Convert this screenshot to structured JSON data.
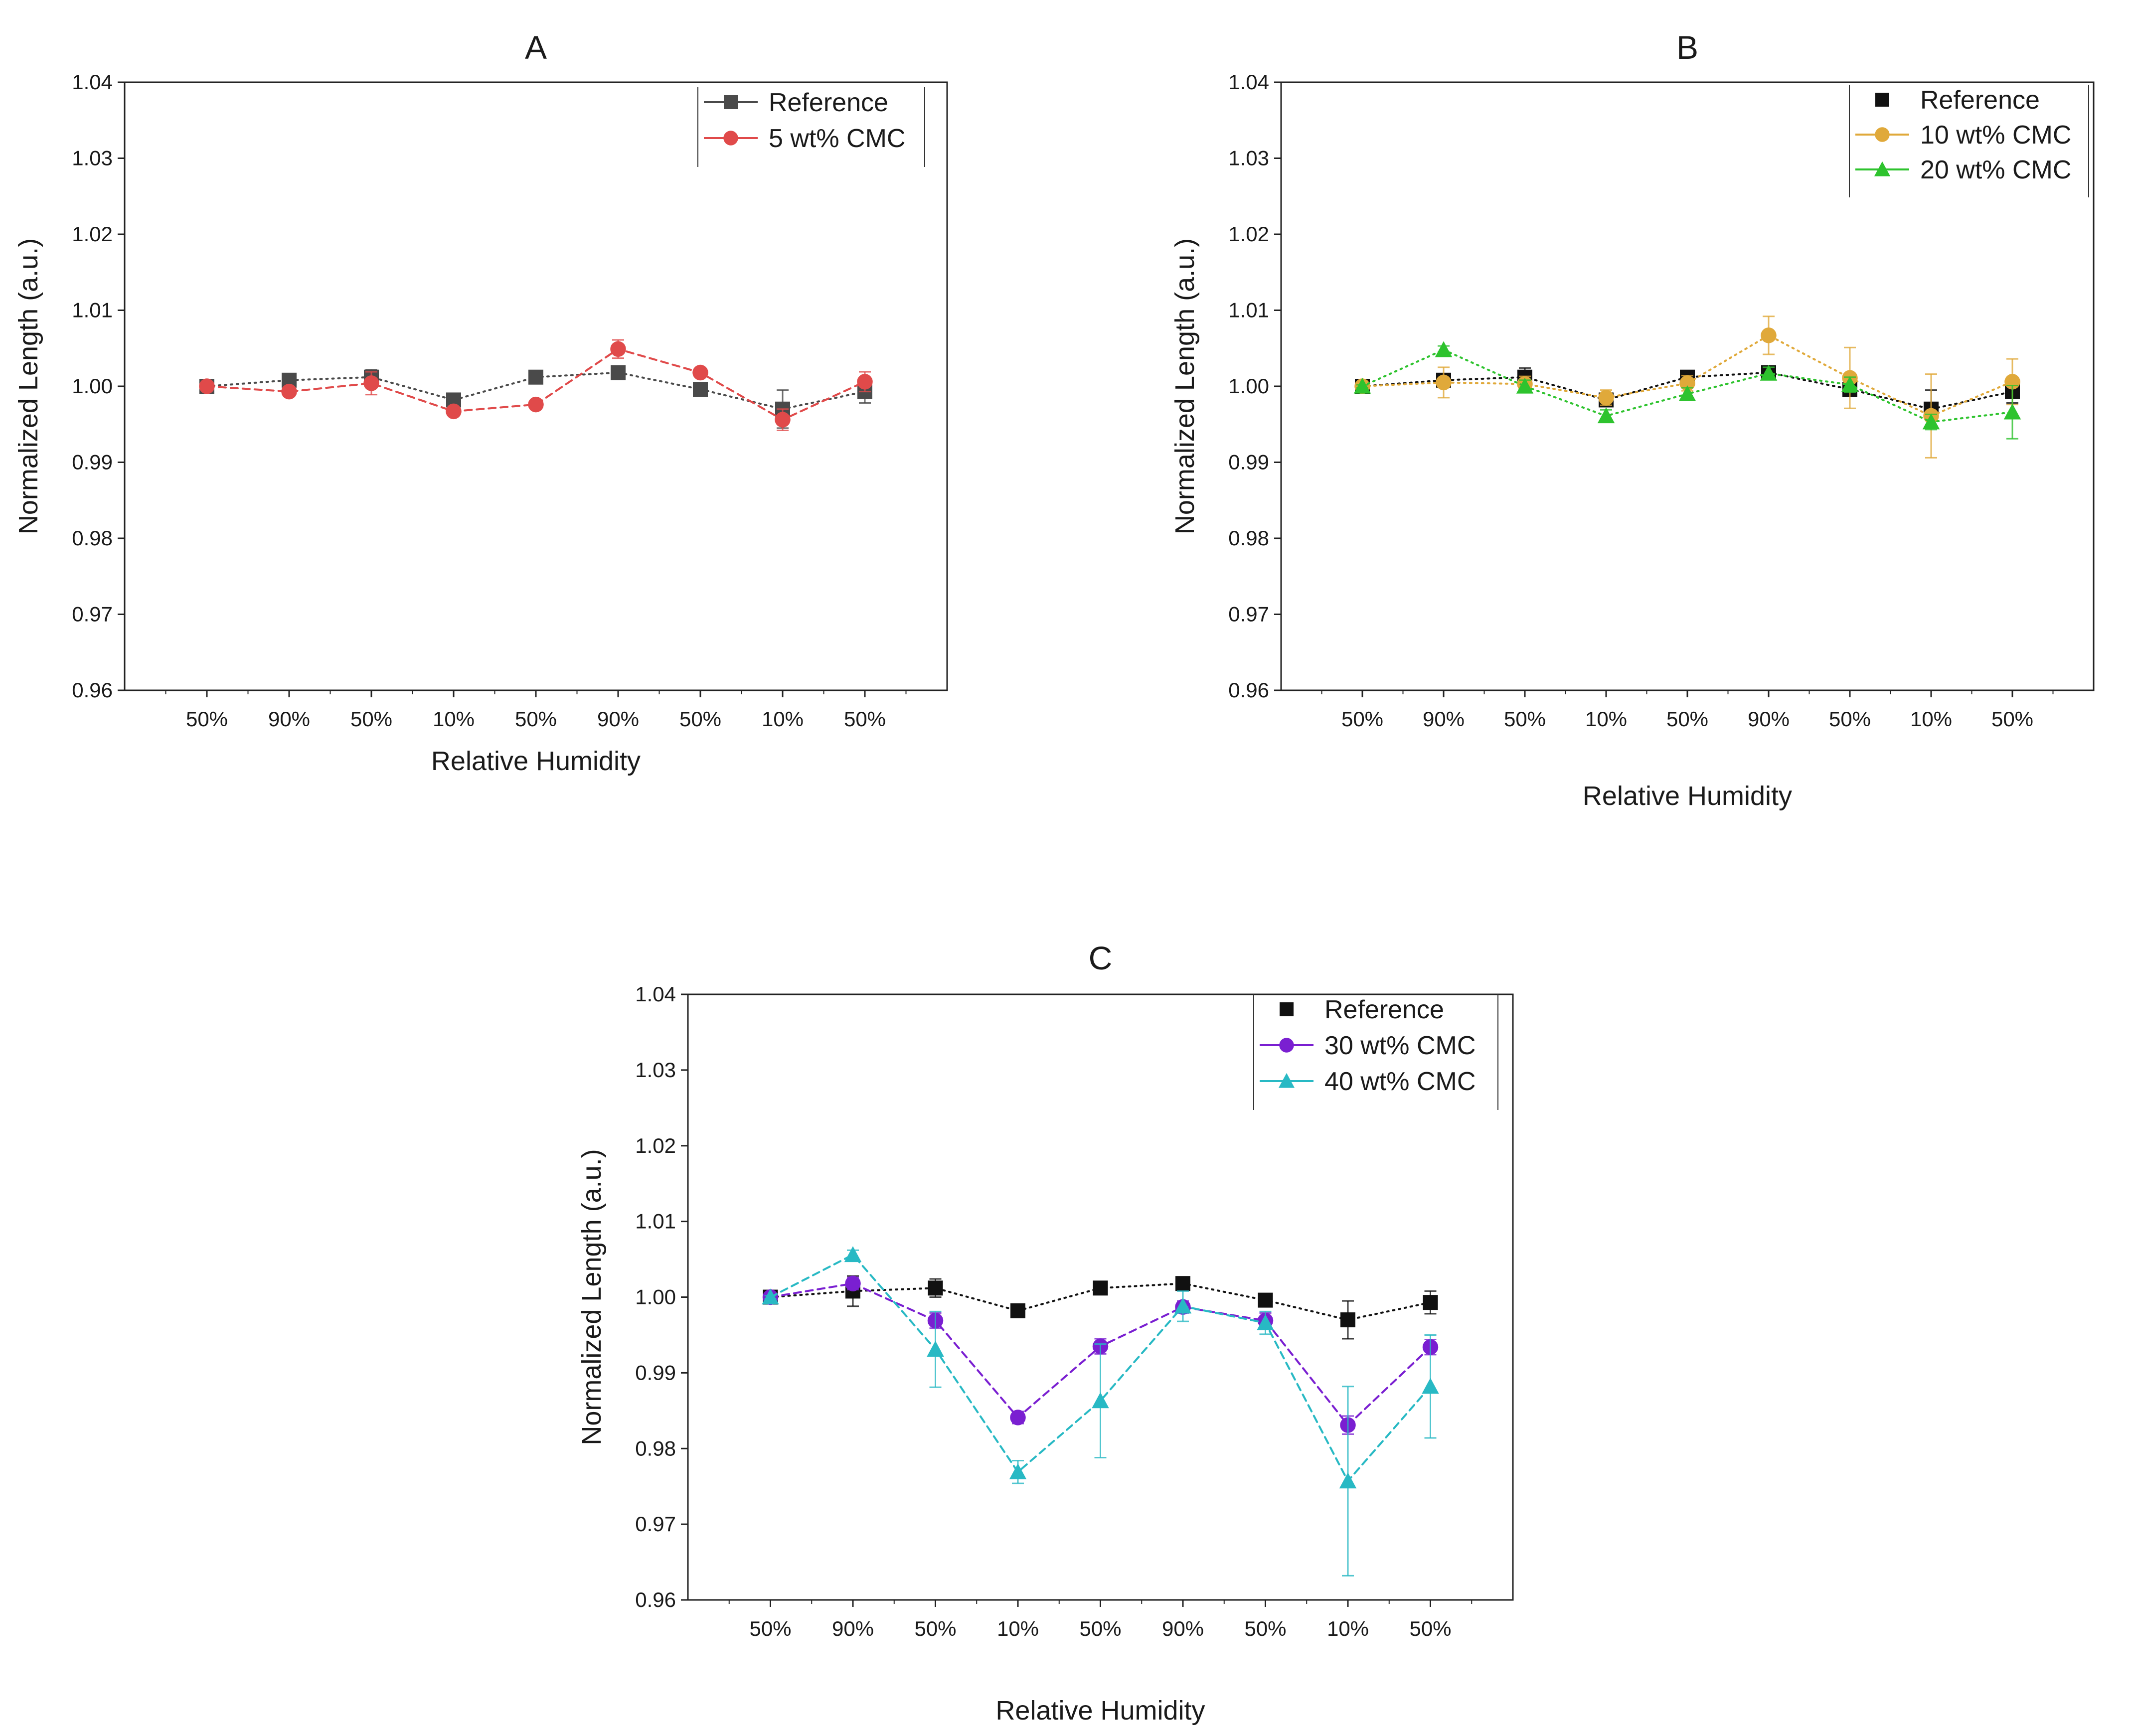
{
  "chart_data": [
    {
      "type": "line",
      "title": "A",
      "xlabel": "Relative Humidity",
      "ylabel": "Normalized Length (a.u.)",
      "categories": [
        "50%",
        "90%",
        "50%",
        "10%",
        "50%",
        "90%",
        "50%",
        "10%",
        "50%"
      ],
      "ylim": [
        0.96,
        1.04
      ],
      "yticks": [
        "0.96",
        "0.97",
        "0.98",
        "0.99",
        "1.00",
        "1.01",
        "1.02",
        "1.03",
        "1.04"
      ],
      "legend_position": "top-right",
      "series": [
        {
          "name": "Reference",
          "color": "#4a4a4a",
          "marker": "square",
          "dash": "dotted",
          "values": [
            1.0,
            1.0008,
            1.0012,
            0.9982,
            1.0012,
            1.0018,
            0.9996,
            0.997,
            0.9993
          ],
          "errors": [
            0.0002,
            0.0005,
            0.001,
            0.0006,
            0.0006,
            0.0006,
            0.0006,
            0.0025,
            0.0015
          ]
        },
        {
          "name": "5 wt% CMC",
          "color": "#e04a4a",
          "marker": "circle",
          "dash": "dashed",
          "values": [
            1.0,
            0.9993,
            1.0004,
            0.9967,
            0.9976,
            1.0049,
            1.0018,
            0.9956,
            1.0006
          ],
          "errors": [
            0.0002,
            0.0005,
            0.0015,
            0.0004,
            0.0004,
            0.0012,
            0.0004,
            0.0014,
            0.0013
          ]
        }
      ]
    },
    {
      "type": "line",
      "title": "B",
      "xlabel": "Relative Humidity",
      "ylabel": "Normalized Length (a.u.)",
      "categories": [
        "50%",
        "90%",
        "50%",
        "10%",
        "50%",
        "90%",
        "50%",
        "10%",
        "50%"
      ],
      "ylim": [
        0.96,
        1.04
      ],
      "yticks": [
        "0.96",
        "0.97",
        "0.98",
        "0.99",
        "1.00",
        "1.01",
        "1.02",
        "1.03",
        "1.04"
      ],
      "legend_position": "top-right",
      "series": [
        {
          "name": "Reference",
          "color": "#111111",
          "marker": "square",
          "dash": "dotted",
          "values": [
            1.0,
            1.0008,
            1.0012,
            0.9982,
            1.0012,
            1.0018,
            0.9996,
            0.997,
            0.9993
          ],
          "errors": [
            0.0002,
            0.0005,
            0.0012,
            0.0006,
            0.0006,
            0.0006,
            0.0006,
            0.0025,
            0.0015
          ]
        },
        {
          "name": "10 wt% CMC",
          "color": "#e0a93a",
          "marker": "circle",
          "dash": "dotted",
          "values": [
            1.0,
            1.0005,
            1.0003,
            0.9985,
            1.0004,
            1.0067,
            1.0011,
            0.9961,
            1.0006
          ],
          "errors": [
            0.0002,
            0.002,
            0.001,
            0.001,
            0.001,
            0.0025,
            0.004,
            0.0055,
            0.003
          ]
        },
        {
          "name": "20 wt% CMC",
          "color": "#2ec32e",
          "marker": "triangle",
          "dash": "dotted",
          "values": [
            1.0,
            1.0048,
            1.0,
            0.9961,
            0.999,
            1.0017,
            1.0002,
            0.9953,
            0.9966
          ],
          "errors": [
            0.0002,
            0.0005,
            0.0008,
            0.0008,
            0.0008,
            0.0008,
            0.001,
            0.001,
            0.0035
          ]
        }
      ]
    },
    {
      "type": "line",
      "title": "C",
      "xlabel": "Relative Humidity",
      "ylabel": "Normalized Length (a.u.)",
      "categories": [
        "50%",
        "90%",
        "50%",
        "10%",
        "50%",
        "90%",
        "50%",
        "10%",
        "50%"
      ],
      "ylim": [
        0.96,
        1.04
      ],
      "yticks": [
        "0.96",
        "0.97",
        "0.98",
        "0.99",
        "1.00",
        "1.01",
        "1.02",
        "1.03",
        "1.04"
      ],
      "legend_position": "top-right",
      "series": [
        {
          "name": "Reference",
          "color": "#111111",
          "marker": "square",
          "dash": "dotted",
          "values": [
            1.0,
            1.0008,
            1.0012,
            0.9982,
            1.0012,
            1.0018,
            0.9996,
            0.997,
            0.9993
          ],
          "errors": [
            0.0002,
            0.002,
            0.0012,
            0.0006,
            0.0006,
            0.0008,
            0.0006,
            0.0025,
            0.0015
          ]
        },
        {
          "name": "30 wt% CMC",
          "color": "#7a1fd1",
          "marker": "circle",
          "dash": "dashed",
          "values": [
            1.0,
            1.0018,
            0.9969,
            0.9841,
            0.9935,
            0.9987,
            0.9969,
            0.9831,
            0.9934
          ],
          "errors": [
            0.0002,
            0.0008,
            0.001,
            0.0008,
            0.001,
            0.0008,
            0.001,
            0.0012,
            0.001
          ]
        },
        {
          "name": "40 wt% CMC",
          "color": "#28b9c4",
          "marker": "triangle",
          "dash": "dashed",
          "values": [
            1.0,
            1.0056,
            0.9931,
            0.9769,
            0.9863,
            0.9988,
            0.9966,
            0.9757,
            0.9882
          ],
          "errors": [
            0.0002,
            0.0006,
            0.005,
            0.0015,
            0.0075,
            0.002,
            0.0015,
            0.0125,
            0.0068
          ]
        }
      ]
    }
  ]
}
